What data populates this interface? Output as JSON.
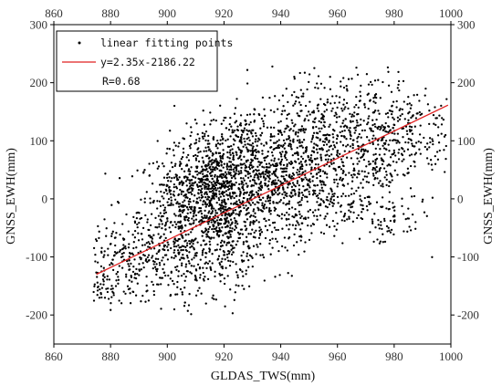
{
  "chart_data": {
    "type": "scatter",
    "xlabel": "GLDAS_TWS(mm)",
    "ylabel": "GNSS_EWH(mm)",
    "ylabel_right": "GNSS_EWH(mm)",
    "xlim": [
      860,
      1000
    ],
    "ylim": [
      -250,
      300
    ],
    "x_ticks": [
      860,
      880,
      900,
      920,
      940,
      960,
      980,
      1000
    ],
    "y_ticks": [
      -200,
      -100,
      0,
      100,
      200,
      300
    ],
    "mirror_axes": true,
    "grid": false,
    "legend_position": "top-left",
    "fit": {
      "slope": 2.35,
      "intercept": -2186.22,
      "x_range": [
        875,
        999
      ]
    },
    "legend": {
      "points_label": "linear fitting points",
      "line_label": "y=2.35x-2186.22",
      "r_label": "R=0.68"
    },
    "colors": {
      "points": "#000000",
      "fit_line": "#e02020",
      "axes": "#000000"
    },
    "series": [
      {
        "name": "linear fitting points",
        "cloud": [
          {
            "x": 906,
            "y": -20,
            "sx": 8,
            "sy": 55,
            "n": 500
          },
          {
            "x": 920,
            "y": -40,
            "sx": 6,
            "sy": 60,
            "n": 450
          },
          {
            "x": 918,
            "y": 40,
            "sx": 7,
            "sy": 40,
            "n": 350
          },
          {
            "x": 932,
            "y": 40,
            "sx": 8,
            "sy": 40,
            "n": 350
          },
          {
            "x": 946,
            "y": 40,
            "sx": 9,
            "sy": 45,
            "n": 350
          },
          {
            "x": 952,
            "y": 115,
            "sx": 12,
            "sy": 30,
            "n": 250
          },
          {
            "x": 972,
            "y": 95,
            "sx": 9,
            "sy": 55,
            "n": 280
          },
          {
            "x": 985,
            "y": 120,
            "sx": 8,
            "sy": 40,
            "n": 160
          },
          {
            "x": 885,
            "y": -110,
            "sx": 7,
            "sy": 40,
            "n": 170
          },
          {
            "x": 900,
            "y": -120,
            "sx": 9,
            "sy": 40,
            "n": 140
          },
          {
            "x": 962,
            "y": 0,
            "sx": 8,
            "sy": 30,
            "n": 110
          },
          {
            "x": 940,
            "y": -50,
            "sx": 8,
            "sy": 35,
            "n": 90
          },
          {
            "x": 978,
            "y": -40,
            "sx": 6,
            "sy": 20,
            "n": 60
          },
          {
            "x": 958,
            "y": 180,
            "sx": 12,
            "sy": 25,
            "n": 70
          },
          {
            "x": 924,
            "y": 120,
            "sx": 5,
            "sy": 20,
            "n": 60
          },
          {
            "x": 877,
            "y": -155,
            "sx": 3,
            "sy": 20,
            "n": 50
          }
        ]
      }
    ]
  }
}
